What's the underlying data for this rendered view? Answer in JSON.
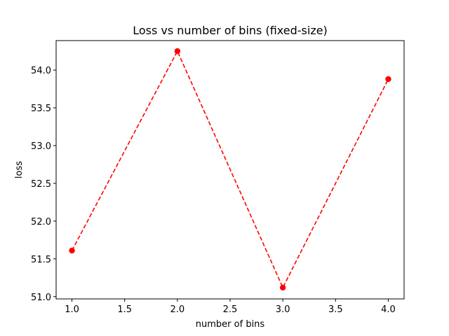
{
  "chart_data": {
    "type": "line",
    "title": "Loss vs number of bins (fixed-size)",
    "xlabel": "number of bins",
    "ylabel": "loss",
    "x": [
      1.0,
      2.0,
      3.0,
      4.0
    ],
    "series": [
      {
        "values": [
          51.61,
          54.25,
          51.12,
          53.88
        ],
        "color": "#ff0000",
        "line_style": "dashed",
        "marker": "circle"
      }
    ],
    "xlim": [
      0.85,
      4.15
    ],
    "ylim": [
      50.97,
      54.39
    ],
    "xticks": [
      1.0,
      1.5,
      2.0,
      2.5,
      3.0,
      3.5,
      4.0
    ],
    "xtick_labels": [
      "1.0",
      "1.5",
      "2.0",
      "2.5",
      "3.0",
      "3.5",
      "4.0"
    ],
    "yticks": [
      51.0,
      51.5,
      52.0,
      52.5,
      53.0,
      53.5,
      54.0
    ],
    "ytick_labels": [
      "51.0",
      "51.5",
      "52.0",
      "52.5",
      "53.0",
      "53.5",
      "54.0"
    ],
    "grid": false,
    "legend": "none"
  }
}
